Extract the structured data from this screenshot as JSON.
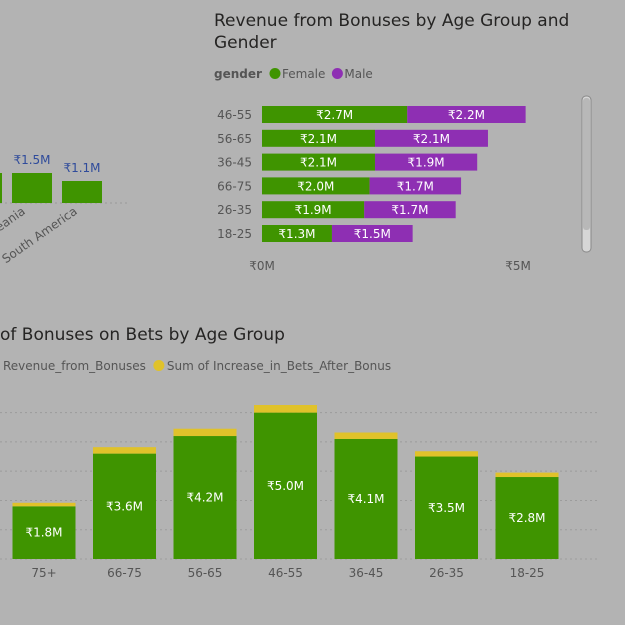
{
  "colors": {
    "background": "#b3b3b3",
    "green": "#3f9400",
    "purple": "#8e2fb3",
    "gold": "#e0c22a",
    "axis_text": "#555555",
    "title_text": "#252423",
    "region_label": "#2f4b9b"
  },
  "chart_data": [
    {
      "type": "bar",
      "orientation": "vertical",
      "partial": true,
      "categories": [
        "Oceania",
        "South America"
      ],
      "visible_tick_labels": [
        "eania",
        "South America"
      ],
      "series": [
        {
          "values": [
            1500000,
            1100000
          ]
        }
      ],
      "value_labels": [
        "₹1.5M",
        "₹1.1M"
      ]
    },
    {
      "type": "bar",
      "orientation": "horizontal",
      "stacked": true,
      "title": "Revenue from Bonuses by Age Group and Gender",
      "legend": {
        "title": "gender",
        "position": "top-left"
      },
      "categories": [
        "46-55",
        "56-65",
        "36-45",
        "66-75",
        "26-35",
        "18-25"
      ],
      "series": [
        {
          "name": "Female",
          "values": [
            2.7,
            2.1,
            2.1,
            2.0,
            1.9,
            1.3
          ],
          "labels": [
            "₹2.7M",
            "₹2.1M",
            "₹2.1M",
            "₹2.0M",
            "₹1.9M",
            "₹1.3M"
          ]
        },
        {
          "name": "Male",
          "values": [
            2.2,
            2.1,
            1.9,
            1.7,
            1.7,
            1.5
          ],
          "labels": [
            "₹2.2M",
            "₹2.1M",
            "₹1.9M",
            "₹1.7M",
            "₹1.7M",
            "₹1.5M"
          ]
        }
      ],
      "xlim": [
        0,
        5
      ],
      "x_ticks": [
        "₹0M",
        "₹5M"
      ],
      "grid": false
    },
    {
      "type": "bar",
      "orientation": "vertical",
      "stacked": true,
      "title": "of Bonuses on Bets by Age Group",
      "legend": {
        "position": "top-left"
      },
      "categories": [
        "75+",
        "66-75",
        "56-65",
        "46-55",
        "36-45",
        "26-35",
        "18-25"
      ],
      "series": [
        {
          "name": "Revenue_from_Bonuses",
          "values": [
            1.8,
            3.6,
            4.2,
            5.0,
            4.1,
            3.5,
            2.8
          ],
          "labels": [
            "₹1.8M",
            "₹3.6M",
            "₹4.2M",
            "₹5.0M",
            "₹4.1M",
            "₹3.5M",
            "₹2.8M"
          ]
        },
        {
          "name": "Sum of Increase_in_Bets_After_Bonus",
          "values": [
            0.12,
            0.22,
            0.25,
            0.26,
            0.22,
            0.18,
            0.15
          ]
        }
      ],
      "ylim": [
        0,
        5.3
      ],
      "grid": true
    }
  ]
}
